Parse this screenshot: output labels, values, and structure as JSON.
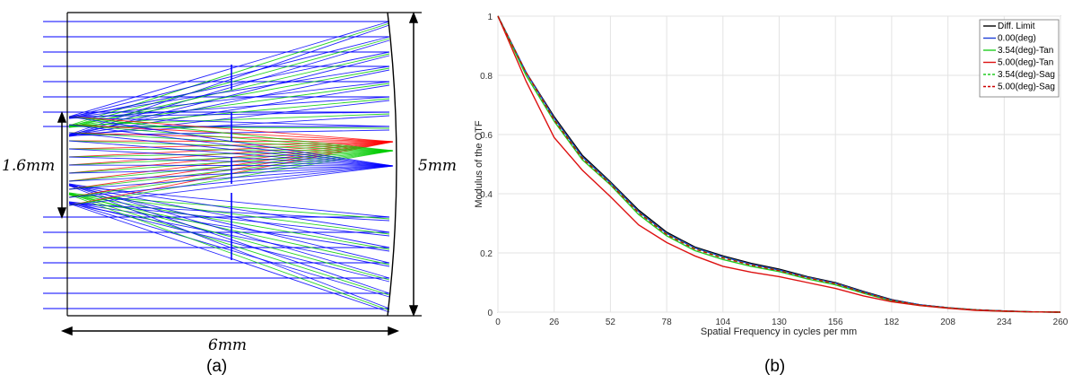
{
  "panel_a": {
    "caption": "(a)",
    "aperture_label": "1.6mm",
    "height_label": "5mm",
    "length_label": "6mm",
    "ray_colors": [
      "#0000ff",
      "#00cc00",
      "#ff0000"
    ]
  },
  "panel_b": {
    "caption": "(b)"
  },
  "chart_data": {
    "type": "line",
    "title": "",
    "xlabel": "Spatial Frequency in cycles per mm",
    "ylabel": "Modulus of the OTF",
    "xlim": [
      0,
      260
    ],
    "ylim": [
      0,
      1
    ],
    "xticks": [
      0,
      26,
      52,
      78,
      104,
      130,
      156,
      182,
      208,
      234,
      260
    ],
    "yticks": [
      0,
      0.2,
      0.4,
      0.6,
      0.8,
      1
    ],
    "grid": true,
    "legend_position": "top-right",
    "x": [
      0,
      13,
      26,
      39,
      52,
      65,
      78,
      91,
      104,
      117,
      130,
      143,
      156,
      169,
      182,
      195,
      208,
      221,
      234,
      247,
      260
    ],
    "series": [
      {
        "name": "Diff. Limit",
        "color": "#000000",
        "dash": "solid",
        "values": [
          1.0,
          0.81,
          0.66,
          0.53,
          0.44,
          0.345,
          0.27,
          0.22,
          0.19,
          0.165,
          0.145,
          0.12,
          0.1,
          0.07,
          0.042,
          0.025,
          0.015,
          0.008,
          0.004,
          0.001,
          0.0
        ]
      },
      {
        "name": "0.00(deg)",
        "color": "#1f3fd6",
        "dash": "solid",
        "values": [
          1.0,
          0.81,
          0.655,
          0.525,
          0.437,
          0.34,
          0.266,
          0.217,
          0.187,
          0.162,
          0.142,
          0.118,
          0.098,
          0.068,
          0.041,
          0.025,
          0.015,
          0.008,
          0.004,
          0.001,
          0.0
        ]
      },
      {
        "name": "3.54(deg)-Tan",
        "color": "#22cc22",
        "dash": "solid",
        "values": [
          1.0,
          0.8,
          0.645,
          0.515,
          0.43,
          0.33,
          0.258,
          0.208,
          0.178,
          0.155,
          0.137,
          0.112,
          0.092,
          0.064,
          0.038,
          0.023,
          0.014,
          0.007,
          0.003,
          0.001,
          0.0
        ]
      },
      {
        "name": "5.00(deg)-Tan",
        "color": "#dd1111",
        "dash": "solid",
        "values": [
          1.0,
          0.78,
          0.59,
          0.48,
          0.39,
          0.295,
          0.235,
          0.19,
          0.155,
          0.135,
          0.12,
          0.1,
          0.08,
          0.055,
          0.035,
          0.022,
          0.013,
          0.006,
          0.003,
          0.001,
          0.0
        ]
      },
      {
        "name": "3.54(deg)-Sag",
        "color": "#22cc22",
        "dash": "dashed",
        "values": [
          1.0,
          0.81,
          0.652,
          0.522,
          0.435,
          0.338,
          0.264,
          0.215,
          0.185,
          0.16,
          0.141,
          0.117,
          0.097,
          0.067,
          0.04,
          0.024,
          0.015,
          0.008,
          0.004,
          0.001,
          0.0
        ]
      },
      {
        "name": "5.00(deg)-Sag",
        "color": "#cc0000",
        "dash": "dashed",
        "values": [
          1.0,
          0.81,
          0.65,
          0.52,
          0.433,
          0.336,
          0.262,
          0.213,
          0.183,
          0.159,
          0.14,
          0.116,
          0.096,
          0.066,
          0.04,
          0.024,
          0.015,
          0.008,
          0.004,
          0.001,
          0.0
        ]
      }
    ]
  }
}
